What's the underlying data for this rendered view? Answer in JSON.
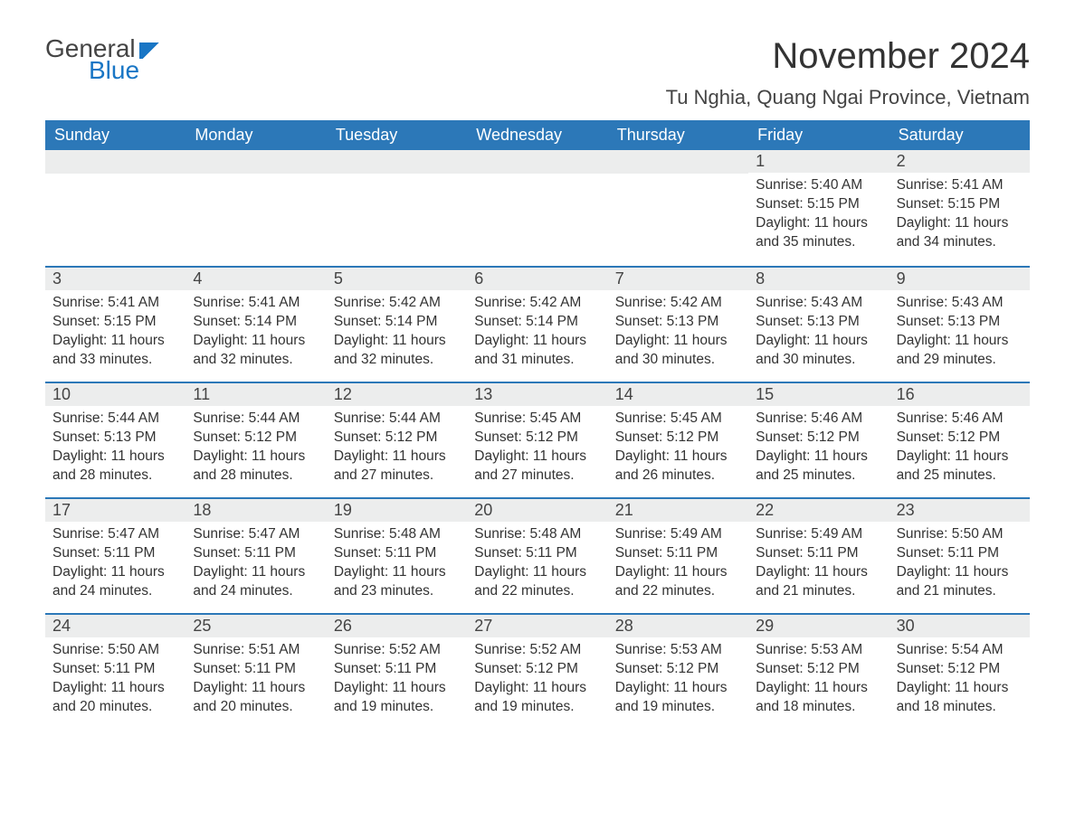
{
  "logo": {
    "general": "General",
    "blue": "Blue"
  },
  "title": "November 2024",
  "location": "Tu Nghia, Quang Ngai Province, Vietnam",
  "colors": {
    "header_bg": "#2c78b8",
    "header_text": "#ffffff",
    "datebar_bg": "#eceded",
    "border": "#2c78b8",
    "text": "#333333",
    "logo_blue": "#1976c5",
    "logo_gray": "#444444"
  },
  "day_names": [
    "Sunday",
    "Monday",
    "Tuesday",
    "Wednesday",
    "Thursday",
    "Friday",
    "Saturday"
  ],
  "weeks": [
    [
      {
        "empty": true
      },
      {
        "empty": true
      },
      {
        "empty": true
      },
      {
        "empty": true
      },
      {
        "empty": true
      },
      {
        "date": "1",
        "sunrise": "Sunrise: 5:40 AM",
        "sunset": "Sunset: 5:15 PM",
        "daylight": "Daylight: 11 hours and 35 minutes."
      },
      {
        "date": "2",
        "sunrise": "Sunrise: 5:41 AM",
        "sunset": "Sunset: 5:15 PM",
        "daylight": "Daylight: 11 hours and 34 minutes."
      }
    ],
    [
      {
        "date": "3",
        "sunrise": "Sunrise: 5:41 AM",
        "sunset": "Sunset: 5:15 PM",
        "daylight": "Daylight: 11 hours and 33 minutes."
      },
      {
        "date": "4",
        "sunrise": "Sunrise: 5:41 AM",
        "sunset": "Sunset: 5:14 PM",
        "daylight": "Daylight: 11 hours and 32 minutes."
      },
      {
        "date": "5",
        "sunrise": "Sunrise: 5:42 AM",
        "sunset": "Sunset: 5:14 PM",
        "daylight": "Daylight: 11 hours and 32 minutes."
      },
      {
        "date": "6",
        "sunrise": "Sunrise: 5:42 AM",
        "sunset": "Sunset: 5:14 PM",
        "daylight": "Daylight: 11 hours and 31 minutes."
      },
      {
        "date": "7",
        "sunrise": "Sunrise: 5:42 AM",
        "sunset": "Sunset: 5:13 PM",
        "daylight": "Daylight: 11 hours and 30 minutes."
      },
      {
        "date": "8",
        "sunrise": "Sunrise: 5:43 AM",
        "sunset": "Sunset: 5:13 PM",
        "daylight": "Daylight: 11 hours and 30 minutes."
      },
      {
        "date": "9",
        "sunrise": "Sunrise: 5:43 AM",
        "sunset": "Sunset: 5:13 PM",
        "daylight": "Daylight: 11 hours and 29 minutes."
      }
    ],
    [
      {
        "date": "10",
        "sunrise": "Sunrise: 5:44 AM",
        "sunset": "Sunset: 5:13 PM",
        "daylight": "Daylight: 11 hours and 28 minutes."
      },
      {
        "date": "11",
        "sunrise": "Sunrise: 5:44 AM",
        "sunset": "Sunset: 5:12 PM",
        "daylight": "Daylight: 11 hours and 28 minutes."
      },
      {
        "date": "12",
        "sunrise": "Sunrise: 5:44 AM",
        "sunset": "Sunset: 5:12 PM",
        "daylight": "Daylight: 11 hours and 27 minutes."
      },
      {
        "date": "13",
        "sunrise": "Sunrise: 5:45 AM",
        "sunset": "Sunset: 5:12 PM",
        "daylight": "Daylight: 11 hours and 27 minutes."
      },
      {
        "date": "14",
        "sunrise": "Sunrise: 5:45 AM",
        "sunset": "Sunset: 5:12 PM",
        "daylight": "Daylight: 11 hours and 26 minutes."
      },
      {
        "date": "15",
        "sunrise": "Sunrise: 5:46 AM",
        "sunset": "Sunset: 5:12 PM",
        "daylight": "Daylight: 11 hours and 25 minutes."
      },
      {
        "date": "16",
        "sunrise": "Sunrise: 5:46 AM",
        "sunset": "Sunset: 5:12 PM",
        "daylight": "Daylight: 11 hours and 25 minutes."
      }
    ],
    [
      {
        "date": "17",
        "sunrise": "Sunrise: 5:47 AM",
        "sunset": "Sunset: 5:11 PM",
        "daylight": "Daylight: 11 hours and 24 minutes."
      },
      {
        "date": "18",
        "sunrise": "Sunrise: 5:47 AM",
        "sunset": "Sunset: 5:11 PM",
        "daylight": "Daylight: 11 hours and 24 minutes."
      },
      {
        "date": "19",
        "sunrise": "Sunrise: 5:48 AM",
        "sunset": "Sunset: 5:11 PM",
        "daylight": "Daylight: 11 hours and 23 minutes."
      },
      {
        "date": "20",
        "sunrise": "Sunrise: 5:48 AM",
        "sunset": "Sunset: 5:11 PM",
        "daylight": "Daylight: 11 hours and 22 minutes."
      },
      {
        "date": "21",
        "sunrise": "Sunrise: 5:49 AM",
        "sunset": "Sunset: 5:11 PM",
        "daylight": "Daylight: 11 hours and 22 minutes."
      },
      {
        "date": "22",
        "sunrise": "Sunrise: 5:49 AM",
        "sunset": "Sunset: 5:11 PM",
        "daylight": "Daylight: 11 hours and 21 minutes."
      },
      {
        "date": "23",
        "sunrise": "Sunrise: 5:50 AM",
        "sunset": "Sunset: 5:11 PM",
        "daylight": "Daylight: 11 hours and 21 minutes."
      }
    ],
    [
      {
        "date": "24",
        "sunrise": "Sunrise: 5:50 AM",
        "sunset": "Sunset: 5:11 PM",
        "daylight": "Daylight: 11 hours and 20 minutes."
      },
      {
        "date": "25",
        "sunrise": "Sunrise: 5:51 AM",
        "sunset": "Sunset: 5:11 PM",
        "daylight": "Daylight: 11 hours and 20 minutes."
      },
      {
        "date": "26",
        "sunrise": "Sunrise: 5:52 AM",
        "sunset": "Sunset: 5:11 PM",
        "daylight": "Daylight: 11 hours and 19 minutes."
      },
      {
        "date": "27",
        "sunrise": "Sunrise: 5:52 AM",
        "sunset": "Sunset: 5:12 PM",
        "daylight": "Daylight: 11 hours and 19 minutes."
      },
      {
        "date": "28",
        "sunrise": "Sunrise: 5:53 AM",
        "sunset": "Sunset: 5:12 PM",
        "daylight": "Daylight: 11 hours and 19 minutes."
      },
      {
        "date": "29",
        "sunrise": "Sunrise: 5:53 AM",
        "sunset": "Sunset: 5:12 PM",
        "daylight": "Daylight: 11 hours and 18 minutes."
      },
      {
        "date": "30",
        "sunrise": "Sunrise: 5:54 AM",
        "sunset": "Sunset: 5:12 PM",
        "daylight": "Daylight: 11 hours and 18 minutes."
      }
    ]
  ]
}
